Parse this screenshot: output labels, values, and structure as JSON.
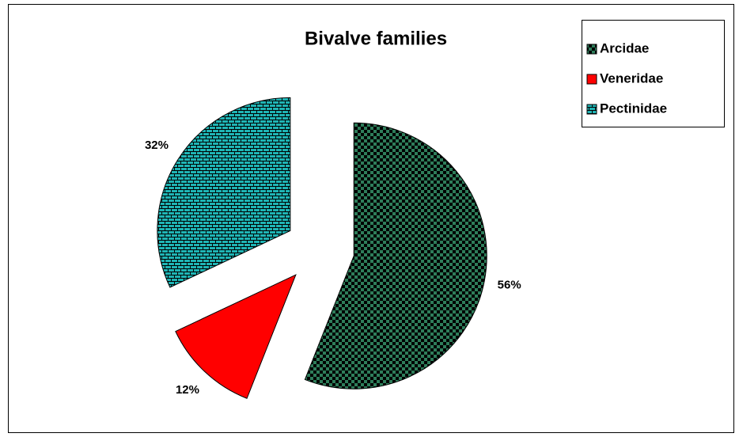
{
  "chart_data": {
    "type": "pie",
    "title": "Bivalve families",
    "categories": [
      "Arcidae",
      "Veneridae",
      "Pectinidae"
    ],
    "values": [
      56,
      12,
      32
    ],
    "value_labels": [
      "56%",
      "12%",
      "32%"
    ],
    "colors": [
      "#2e7d5a",
      "#ff0000",
      "#1fb5b5"
    ],
    "patterns": [
      "checker",
      "solid",
      "brick"
    ],
    "exploded": true,
    "legend": "top-right"
  }
}
